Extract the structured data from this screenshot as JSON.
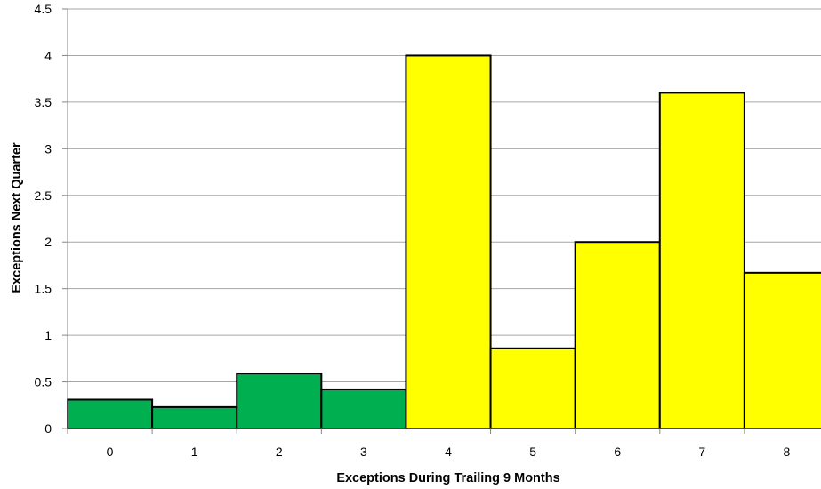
{
  "chart_data": {
    "type": "bar",
    "categories": [
      "0",
      "1",
      "2",
      "3",
      "4",
      "5",
      "6",
      "7",
      "8"
    ],
    "values": [
      0.31,
      0.23,
      0.59,
      0.42,
      4.0,
      0.86,
      2.0,
      3.6,
      1.67
    ],
    "bar_colors": [
      "#00b050",
      "#00b050",
      "#00b050",
      "#00b050",
      "#ffff00",
      "#ffff00",
      "#ffff00",
      "#ffff00",
      "#ffff00"
    ],
    "bar_outline": "#000000",
    "gridline_color": "#a6a6a6",
    "xlabel": "Exceptions During Trailing 9 Months",
    "ylabel": "Exceptions Next Quarter",
    "ylim": [
      0,
      4.5
    ],
    "yticks": [
      "0",
      "0.5",
      "1",
      "1.5",
      "2",
      "2.5",
      "3",
      "3.5",
      "4",
      "4.5"
    ],
    "grid": true,
    "legend": "none"
  }
}
